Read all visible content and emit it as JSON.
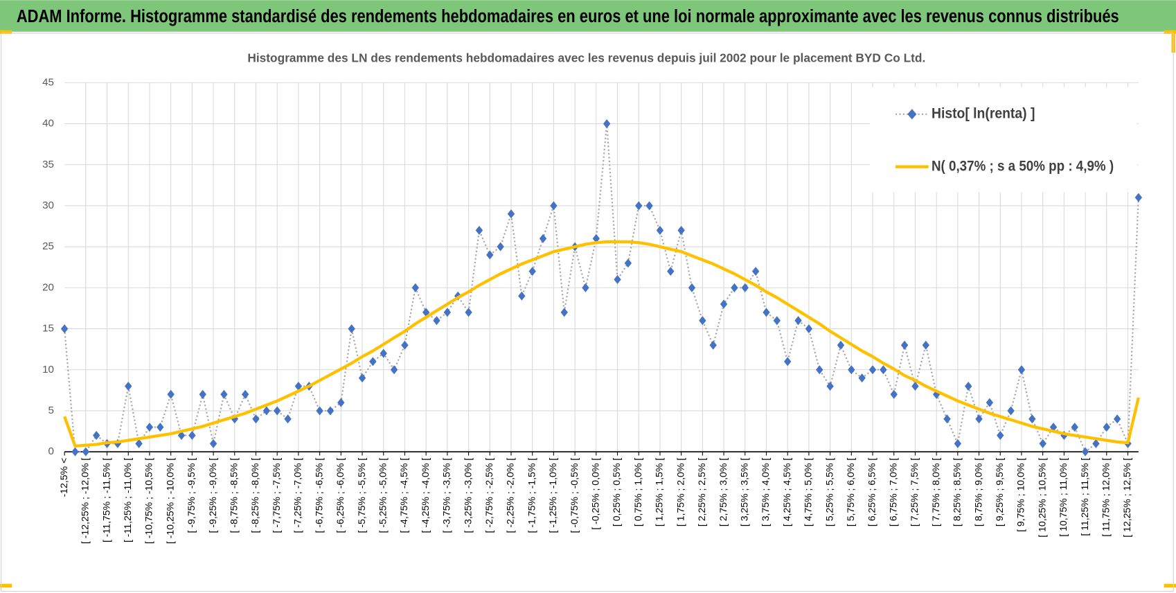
{
  "chart_data": {
    "type": "line",
    "title": "ADAM Informe. Histogramme standardisé des rendements hebdomadaires en euros et une loi normale approximante avec les revenus connus distribués",
    "subtitle": "Histogramme  des LN des rendements hebdomadaires avec les revenus depuis juil 2002 pour le placement BYD Co Ltd.",
    "categories": [
      "-12,5% <",
      null,
      "[ -12,25% ; -12,0% [",
      null,
      "[ -11,75% ; -11,5% [",
      null,
      "[ -11,25% ; -11,0% [",
      null,
      "[ -10,75% ; -10,5% [",
      null,
      "[ -10,25% ; -10,0% [",
      null,
      "[ -9,75% ; -9,5% [",
      null,
      "[ -9,25% ; -9,0% [",
      null,
      "[ -8,75% ; -8,5% [",
      null,
      "[ -8,25% ; -8,0% [",
      null,
      "[ -7,75% ; -7,5% [",
      null,
      "[ -7,25% ; -7,0% [",
      null,
      "[ -6,75% ; -6,5% [",
      null,
      "[ -6,25% ; -6,0% [",
      null,
      "[ -5,75% ; -5,5% [",
      null,
      "[ -5,25% ; -5,0% [",
      null,
      "[ -4,75% ; -4,5% [",
      null,
      "[ -4,25% ; -4,0% [",
      null,
      "[ -3,75% ; -3,5% [",
      null,
      "[ -3,25% ; -3,0% [",
      null,
      "[ -2,75% ; -2,5% [",
      null,
      "[ -2,25% ; -2,0% [",
      null,
      "[ -1,75% ; -1,5% [",
      null,
      "[ -1,25% ; -1,0% [",
      null,
      "[ -0,75% ; -0,5% [",
      null,
      "[ -0,25% ; 0,0% [",
      null,
      "[ 0,25% ; 0,5% [",
      null,
      "[ 0,75% ; 1,0% [",
      null,
      "[ 1,25% ; 1,5% [",
      null,
      "[ 1,75% ; 2,0% [",
      null,
      "[ 2,25% ; 2,5% [",
      null,
      "[ 2,75% ; 3,0% [",
      null,
      "[ 3,25% ; 3,5% [",
      null,
      "[ 3,75% ; 4,0% [",
      null,
      "[ 4,25% ; 4,5% [",
      null,
      "[ 4,75% ; 5,0% [",
      null,
      "[ 5,25% ; 5,5% [",
      null,
      "[ 5,75% ; 6,0% [",
      null,
      "[ 6,25% ; 6,5% [",
      null,
      "[ 6,75% ; 7,0% [",
      null,
      "[ 7,25% ; 7,5% [",
      null,
      "[ 7,75% ; 8,0% [",
      null,
      "[ 8,25% ; 8,5% [",
      null,
      "[ 8,75% ; 9,0% [",
      null,
      "[ 9,25% ; 9,5% [",
      null,
      "[ 9,75% ; 10,0% [",
      null,
      "[ 10,25% ; 10,5% [",
      null,
      "[ 10,75% ; 11,0% [",
      null,
      "[ 11,25% ; 11,5% [",
      null,
      "[ 11,75% ; 12,0% [",
      null,
      "[ 12,25% ; 12,5% [",
      null
    ],
    "series": [
      {
        "name": "Histo[ ln(renta) ]",
        "color": "#4472c4",
        "line_color": "#a6a6a6",
        "marker": "diamond",
        "dash": "dotted",
        "values": [
          15,
          0,
          0,
          2,
          1,
          1,
          8,
          1,
          3,
          3,
          7,
          2,
          2,
          7,
          1,
          7,
          4,
          7,
          4,
          5,
          5,
          4,
          8,
          8,
          5,
          5,
          6,
          15,
          9,
          11,
          12,
          10,
          13,
          20,
          17,
          16,
          17,
          19,
          17,
          27,
          24,
          25,
          29,
          19,
          22,
          26,
          30,
          17,
          25,
          20,
          26,
          40,
          21,
          23,
          30,
          30,
          27,
          22,
          27,
          20,
          16,
          13,
          18,
          20,
          20,
          22,
          17,
          16,
          11,
          16,
          15,
          10,
          8,
          13,
          10,
          9,
          10,
          10,
          7,
          13,
          8,
          13,
          7,
          4,
          1,
          8,
          4,
          6,
          2,
          5,
          10,
          4,
          1,
          3,
          2,
          3,
          0,
          1,
          3,
          4,
          1,
          31
        ]
      },
      {
        "name": "N( 0,37% ; s a 50% pp : 4,9% )",
        "color": "#ffc000",
        "values": [
          4.3,
          0.7,
          0.8,
          0.9,
          1.1,
          1.2,
          1.4,
          1.6,
          1.8,
          2.0,
          2.2,
          2.5,
          2.8,
          3.1,
          3.5,
          3.9,
          4.3,
          4.7,
          5.2,
          5.7,
          6.2,
          6.8,
          7.4,
          8.0,
          8.7,
          9.4,
          10.1,
          10.8,
          11.6,
          12.3,
          13.1,
          13.9,
          14.7,
          15.6,
          16.4,
          17.2,
          18.0,
          18.8,
          19.5,
          20.3,
          21.0,
          21.7,
          22.3,
          22.9,
          23.4,
          23.9,
          24.4,
          24.7,
          25.0,
          25.3,
          25.5,
          25.6,
          25.6,
          25.6,
          25.5,
          25.3,
          25.0,
          24.7,
          24.4,
          23.9,
          23.4,
          22.9,
          22.3,
          21.7,
          21.0,
          20.3,
          19.5,
          18.8,
          18.0,
          17.2,
          16.4,
          15.6,
          14.7,
          13.9,
          13.1,
          12.3,
          11.6,
          10.8,
          10.1,
          9.3,
          8.7,
          8.0,
          7.4,
          6.8,
          6.2,
          5.7,
          5.2,
          4.7,
          4.3,
          3.9,
          3.5,
          3.1,
          2.8,
          2.5,
          2.2,
          2.0,
          1.8,
          1.6,
          1.4,
          1.2,
          1.1,
          6.6
        ]
      }
    ],
    "ylim": [
      0,
      45
    ],
    "yticks": [
      0,
      5,
      10,
      15,
      20,
      25,
      30,
      35,
      40,
      45
    ],
    "grid": true,
    "legend": "upper right"
  }
}
